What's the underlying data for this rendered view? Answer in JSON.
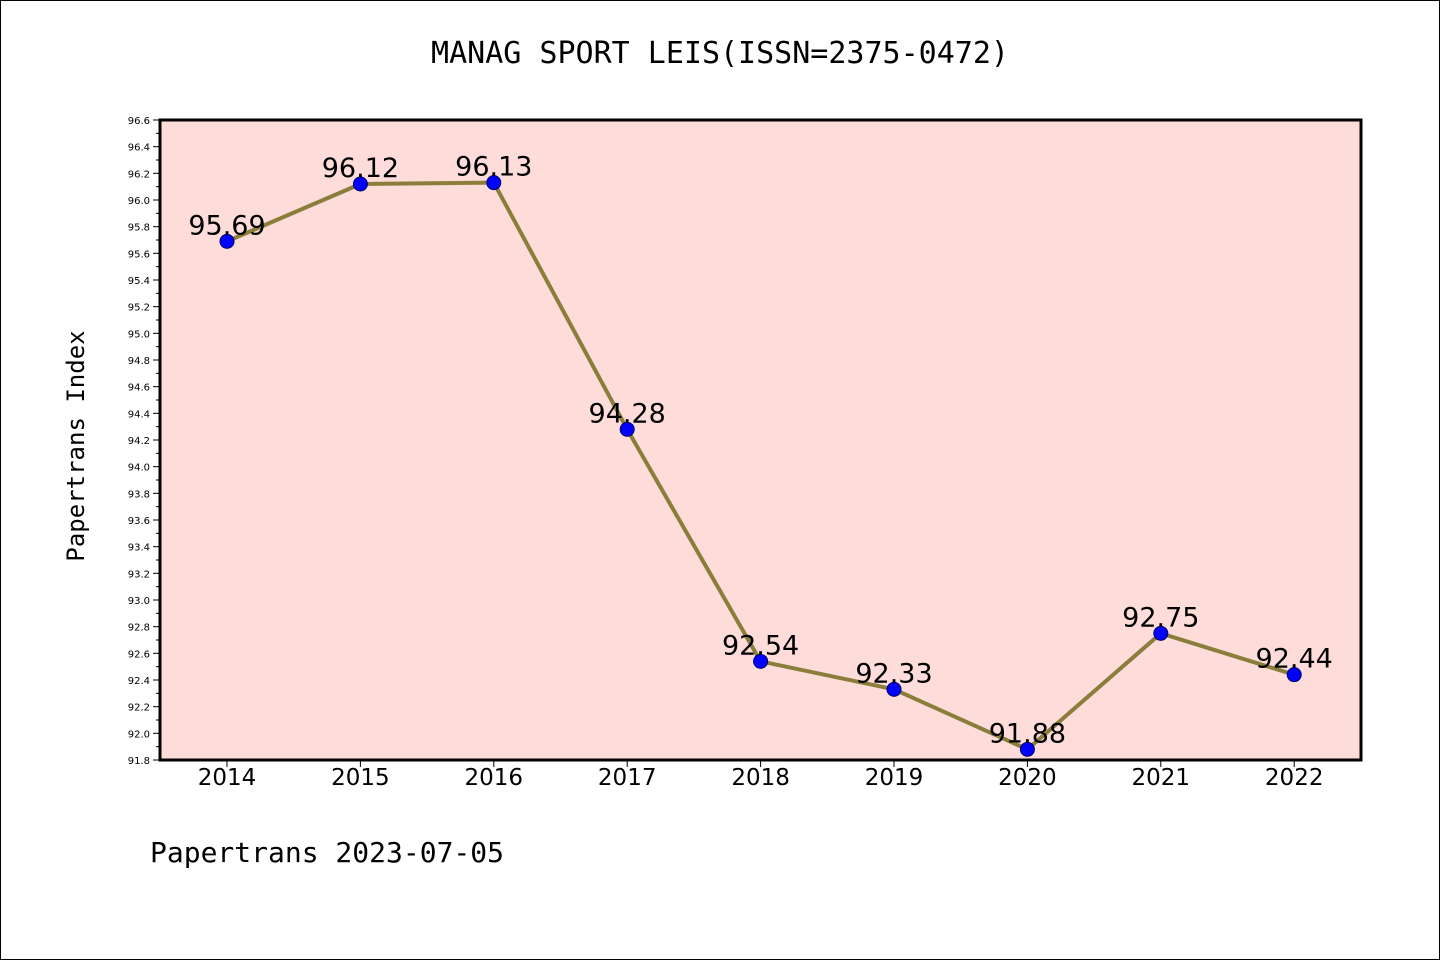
{
  "title": "MANAG SPORT LEIS(ISSN=2375-0472)",
  "footer": "Papertrans 2023-07-05",
  "chart_data": {
    "type": "line",
    "title": "MANAG SPORT LEIS(ISSN=2375-0472)",
    "xlabel": "",
    "ylabel": "Papertrans Index",
    "categories": [
      "2014",
      "2015",
      "2016",
      "2017",
      "2018",
      "2019",
      "2020",
      "2021",
      "2022"
    ],
    "series": [
      {
        "values": [
          95.69,
          96.12,
          96.13,
          94.28,
          92.54,
          92.33,
          91.88,
          92.75,
          92.44
        ],
        "labels": [
          "95.69",
          "96.12",
          "96.13",
          "94.28",
          "92.54",
          "92.33",
          "91.88",
          "92.75",
          "92.44"
        ],
        "line_color": "#8B7D3A",
        "marker_color": "#0000FF"
      }
    ],
    "ylim": [
      91.8,
      96.6
    ],
    "yticks": [
      "91.8",
      "92.0",
      "92.2",
      "92.4",
      "92.6",
      "92.8",
      "93.0",
      "93.2",
      "93.4",
      "93.6",
      "93.8",
      "94.0",
      "94.2",
      "94.4",
      "94.6",
      "94.8",
      "95.0",
      "95.2",
      "95.4",
      "95.6",
      "95.8",
      "96.0",
      "96.2",
      "96.4",
      "96.6"
    ],
    "plot_background": "#FDDCDA",
    "grid": false,
    "legend": "none"
  }
}
